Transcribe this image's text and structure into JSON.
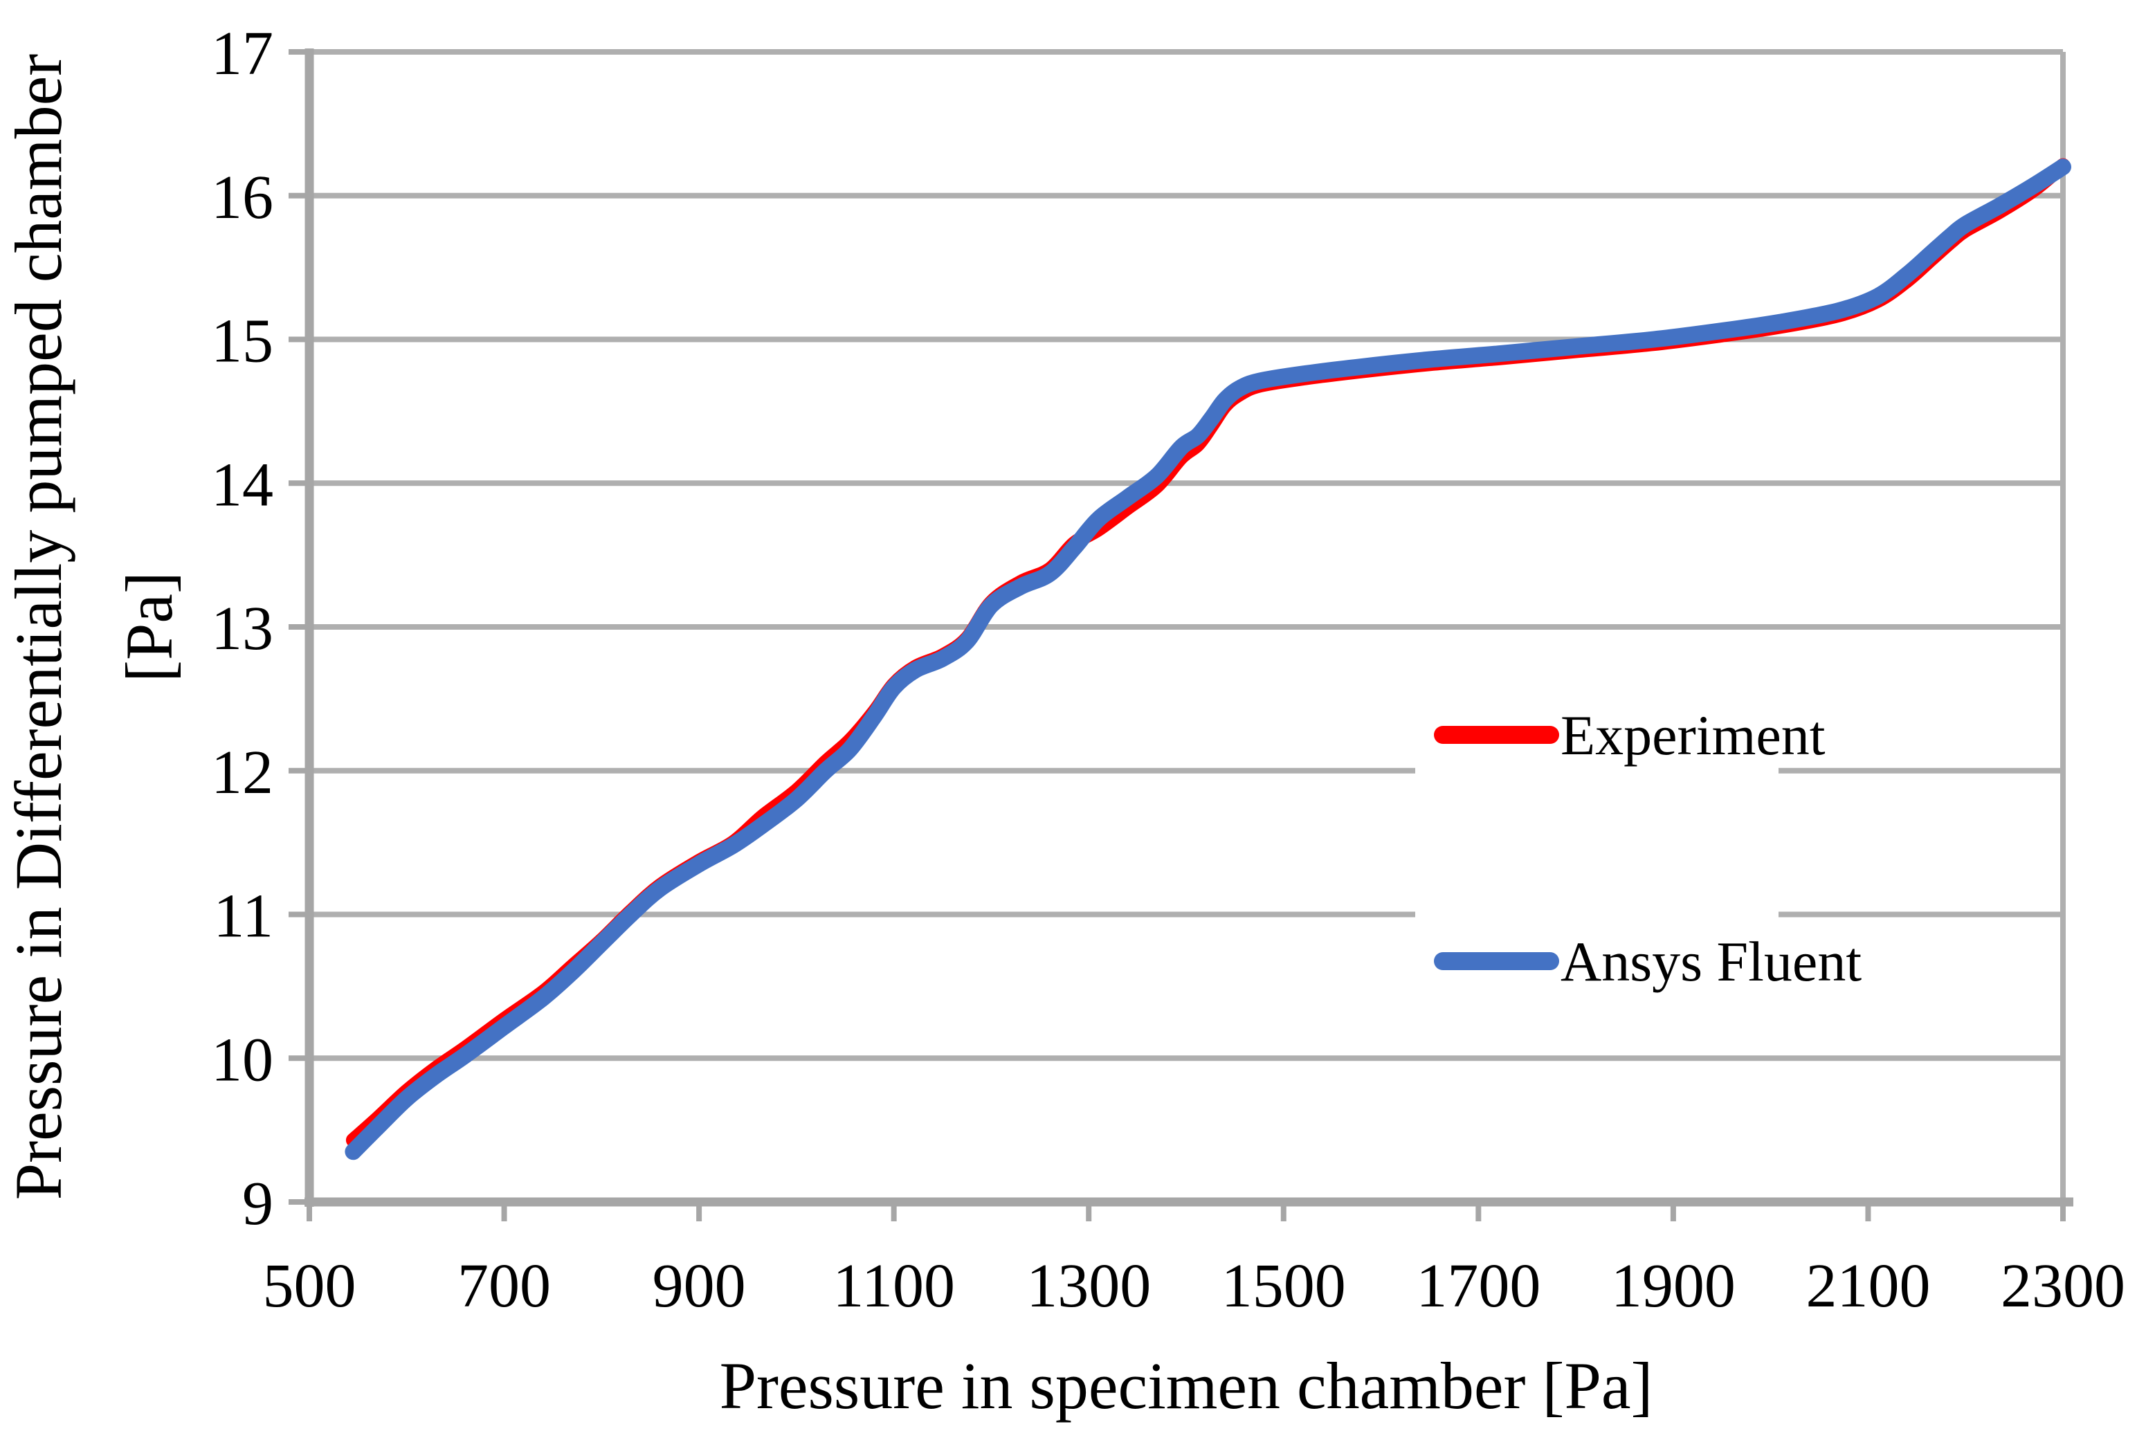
{
  "chart_data": {
    "type": "line",
    "title": "",
    "xlabel": "Pressure in specimen chamber [Pa]",
    "ylabel": "Pressure in Differentially pumped chamber",
    "ylabel_units": "[Pa]",
    "xlim": [
      500,
      2300
    ],
    "ylim": [
      9,
      17
    ],
    "x_ticks": [
      500,
      700,
      900,
      1100,
      1300,
      1500,
      1700,
      1900,
      2100,
      2300
    ],
    "y_ticks": [
      9,
      10,
      11,
      12,
      13,
      14,
      15,
      16,
      17
    ],
    "grid": "horizontal gridlines at every y tick, plot box border on top and right",
    "legend_position": "center-right overlay with white background",
    "colors": {
      "experiment": "#FF0000",
      "ansys_fluent": "#4472C4",
      "gridline": "#AFAFAF",
      "axis": "#A6A6A6",
      "text": "#000000",
      "background": "#FFFFFF"
    },
    "series": [
      {
        "name": "Experiment",
        "color": "#FF0000",
        "stroke_width": 21,
        "points": [
          [
            545,
            9.43
          ],
          [
            570,
            9.58
          ],
          [
            600,
            9.77
          ],
          [
            630,
            9.93
          ],
          [
            660,
            10.07
          ],
          [
            700,
            10.27
          ],
          [
            740,
            10.46
          ],
          [
            770,
            10.64
          ],
          [
            800,
            10.82
          ],
          [
            830,
            11.02
          ],
          [
            860,
            11.2
          ],
          [
            900,
            11.37
          ],
          [
            935,
            11.5
          ],
          [
            965,
            11.68
          ],
          [
            1000,
            11.86
          ],
          [
            1030,
            12.06
          ],
          [
            1055,
            12.21
          ],
          [
            1080,
            12.41
          ],
          [
            1100,
            12.6
          ],
          [
            1122,
            12.72
          ],
          [
            1150,
            12.8
          ],
          [
            1175,
            12.92
          ],
          [
            1200,
            13.17
          ],
          [
            1230,
            13.31
          ],
          [
            1260,
            13.4
          ],
          [
            1285,
            13.58
          ],
          [
            1310,
            13.68
          ],
          [
            1340,
            13.83
          ],
          [
            1370,
            13.98
          ],
          [
            1395,
            14.18
          ],
          [
            1412,
            14.27
          ],
          [
            1426,
            14.4
          ],
          [
            1440,
            14.54
          ],
          [
            1455,
            14.62
          ],
          [
            1475,
            14.68
          ],
          [
            1520,
            14.73
          ],
          [
            1580,
            14.78
          ],
          [
            1650,
            14.83
          ],
          [
            1720,
            14.87
          ],
          [
            1800,
            14.92
          ],
          [
            1880,
            14.97
          ],
          [
            1950,
            15.03
          ],
          [
            2010,
            15.09
          ],
          [
            2070,
            15.17
          ],
          [
            2110,
            15.27
          ],
          [
            2140,
            15.41
          ],
          [
            2165,
            15.56
          ],
          [
            2185,
            15.68
          ],
          [
            2200,
            15.76
          ],
          [
            2235,
            15.89
          ],
          [
            2270,
            16.04
          ],
          [
            2300,
            16.21
          ]
        ]
      },
      {
        "name": "Ansys Fluent",
        "color": "#4472C4",
        "stroke_width": 24,
        "points": [
          [
            545,
            9.35
          ],
          [
            570,
            9.52
          ],
          [
            600,
            9.72
          ],
          [
            630,
            9.88
          ],
          [
            660,
            10.02
          ],
          [
            700,
            10.22
          ],
          [
            740,
            10.42
          ],
          [
            770,
            10.6
          ],
          [
            800,
            10.8
          ],
          [
            830,
            11.0
          ],
          [
            860,
            11.18
          ],
          [
            900,
            11.35
          ],
          [
            935,
            11.48
          ],
          [
            965,
            11.62
          ],
          [
            1000,
            11.8
          ],
          [
            1030,
            12.0
          ],
          [
            1055,
            12.15
          ],
          [
            1080,
            12.38
          ],
          [
            1100,
            12.58
          ],
          [
            1122,
            12.7
          ],
          [
            1150,
            12.78
          ],
          [
            1175,
            12.9
          ],
          [
            1200,
            13.15
          ],
          [
            1230,
            13.28
          ],
          [
            1260,
            13.37
          ],
          [
            1285,
            13.55
          ],
          [
            1310,
            13.75
          ],
          [
            1340,
            13.9
          ],
          [
            1370,
            14.05
          ],
          [
            1395,
            14.25
          ],
          [
            1412,
            14.33
          ],
          [
            1426,
            14.45
          ],
          [
            1440,
            14.58
          ],
          [
            1455,
            14.66
          ],
          [
            1475,
            14.71
          ],
          [
            1520,
            14.76
          ],
          [
            1580,
            14.81
          ],
          [
            1650,
            14.86
          ],
          [
            1720,
            14.9
          ],
          [
            1800,
            14.95
          ],
          [
            1880,
            15.0
          ],
          [
            1950,
            15.06
          ],
          [
            2010,
            15.12
          ],
          [
            2070,
            15.2
          ],
          [
            2110,
            15.3
          ],
          [
            2140,
            15.45
          ],
          [
            2165,
            15.6
          ],
          [
            2185,
            15.72
          ],
          [
            2200,
            15.8
          ],
          [
            2235,
            15.93
          ],
          [
            2270,
            16.07
          ],
          [
            2300,
            16.2
          ]
        ]
      }
    ]
  }
}
